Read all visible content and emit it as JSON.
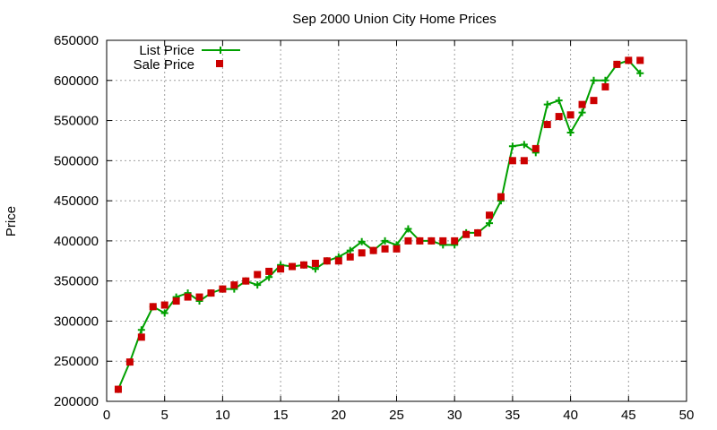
{
  "chart_data": {
    "type": "line",
    "title": "Sep 2000 Union City Home Prices",
    "xlabel": "",
    "ylabel": "Price",
    "xlim": [
      0,
      50
    ],
    "ylim": [
      200000,
      650000
    ],
    "xticks": [
      0,
      5,
      10,
      15,
      20,
      25,
      30,
      35,
      40,
      45,
      50
    ],
    "yticks": [
      200000,
      250000,
      300000,
      350000,
      400000,
      450000,
      500000,
      550000,
      600000,
      650000
    ],
    "grid": true,
    "legend_position": "top-left",
    "series": [
      {
        "name": "List Price",
        "style": "line-plus",
        "color": "#00a000",
        "x": [
          1,
          2,
          3,
          4,
          5,
          6,
          7,
          8,
          9,
          10,
          11,
          12,
          13,
          14,
          15,
          16,
          17,
          18,
          19,
          20,
          21,
          22,
          23,
          24,
          25,
          26,
          27,
          28,
          29,
          30,
          31,
          32,
          33,
          34,
          35,
          36,
          37,
          38,
          39,
          40,
          41,
          42,
          43,
          44,
          45,
          46
        ],
        "y": [
          215000,
          249000,
          289000,
          318000,
          310000,
          330000,
          335000,
          325000,
          335000,
          340000,
          340000,
          350000,
          345000,
          355000,
          370000,
          368000,
          370000,
          365000,
          375000,
          380000,
          388000,
          399000,
          388000,
          400000,
          395000,
          415000,
          400000,
          400000,
          395000,
          395000,
          410000,
          410000,
          422000,
          450000,
          518000,
          520000,
          510000,
          570000,
          575000,
          535000,
          560000,
          600000,
          600000,
          620000,
          625000,
          609000
        ]
      },
      {
        "name": "Sale Price",
        "style": "square",
        "color": "#cc0000",
        "x": [
          1,
          2,
          3,
          4,
          5,
          6,
          7,
          8,
          9,
          10,
          11,
          12,
          13,
          14,
          15,
          16,
          17,
          18,
          19,
          20,
          21,
          22,
          23,
          24,
          25,
          26,
          27,
          28,
          29,
          30,
          31,
          32,
          33,
          34,
          35,
          36,
          37,
          38,
          39,
          40,
          41,
          42,
          43,
          44,
          45,
          46
        ],
        "y": [
          215000,
          249000,
          280000,
          318000,
          320000,
          325000,
          330000,
          330000,
          335000,
          340000,
          345000,
          350000,
          358000,
          362000,
          365000,
          368000,
          370000,
          372000,
          375000,
          375000,
          380000,
          385000,
          388000,
          390000,
          390000,
          400000,
          400000,
          400000,
          400000,
          400000,
          408000,
          410000,
          432000,
          455000,
          500000,
          500000,
          515000,
          545000,
          555000,
          557000,
          570000,
          575000,
          592000,
          620000,
          625000,
          625000
        ]
      }
    ]
  }
}
